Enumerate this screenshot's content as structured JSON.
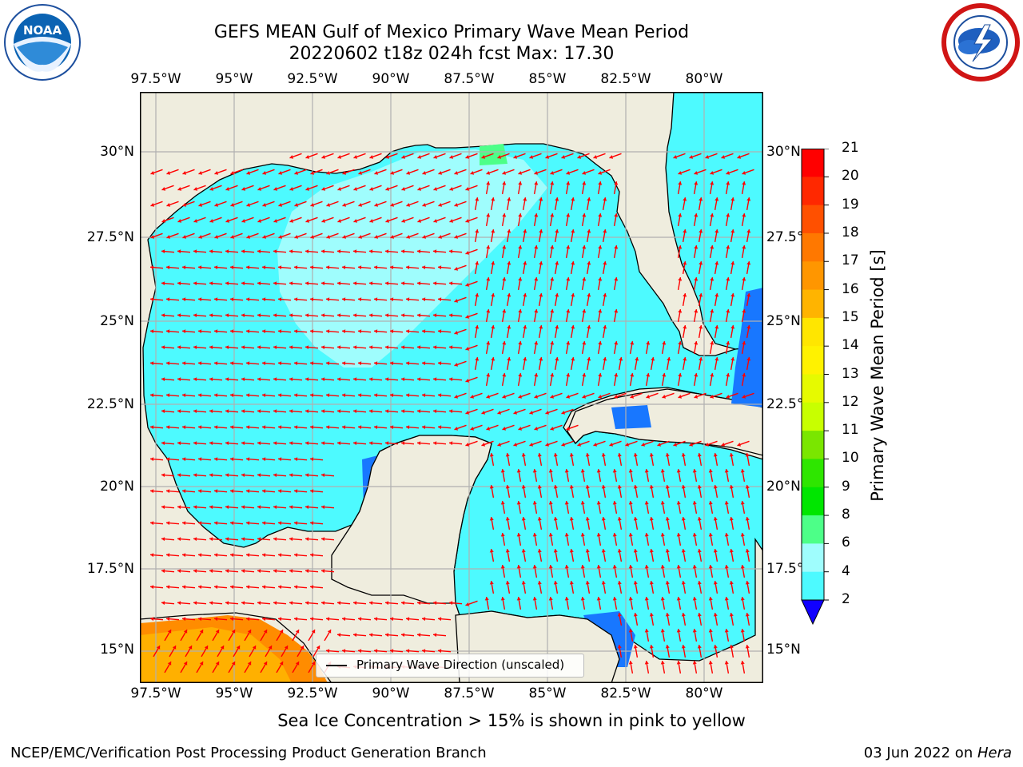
{
  "title": {
    "line1": "GEFS MEAN Gulf of Mexico Primary Wave Mean Period",
    "line2": "20220602 t18z 024h fcst   Max: 17.30"
  },
  "logos": {
    "left": {
      "icon": "noaa-logo",
      "text": "NOAA"
    },
    "right": {
      "icon": "national-weather-service-logo"
    }
  },
  "map": {
    "lon_labels": [
      "97.5°W",
      "95°W",
      "92.5°W",
      "90°W",
      "87.5°W",
      "85°W",
      "82.5°W",
      "80°W"
    ],
    "lat_labels": [
      "30°N",
      "27.5°N",
      "25°N",
      "22.5°N",
      "20°N",
      "17.5°N",
      "15°N"
    ],
    "colors": {
      "land": "#efedde",
      "water_4_6": "#00ffff",
      "water_6_8": "#4dfaff",
      "water_8_9": "#9ffdfd",
      "deep_2_4": "#1877ff",
      "warm_16_17": "#ffb000",
      "warm_17_18": "#ff8c00",
      "arrow": "#ff0000",
      "grid": "#b0b0b0"
    },
    "legend_label": "Primary Wave Direction (unscaled)"
  },
  "colorbar": {
    "label": "Primary Wave Mean Period [s]",
    "ticks": [
      "21",
      "20",
      "19",
      "18",
      "17",
      "16",
      "15",
      "14",
      "13",
      "12",
      "11",
      "10",
      "9",
      "8",
      "6",
      "4",
      "2"
    ],
    "colors": [
      "#ff0000",
      "#ff2800",
      "#ff5000",
      "#ff7800",
      "#ff9600",
      "#ffb400",
      "#ffe600",
      "#fff200",
      "#e6fa00",
      "#c8ff00",
      "#7ae600",
      "#2ee600",
      "#00e600",
      "#4dff88",
      "#9ffdfd",
      "#4dfaff",
      "#00ffff",
      "#1877ff"
    ],
    "extend_color": "#1000ff"
  },
  "footer": {
    "note": "Sea Ice Concentration > 15% is shown in pink to yellow",
    "left": "NCEP/EMC/Verification Post Processing Product Generation Branch",
    "right_prefix": "03 Jun 2022 on ",
    "right_host": "Hera"
  }
}
